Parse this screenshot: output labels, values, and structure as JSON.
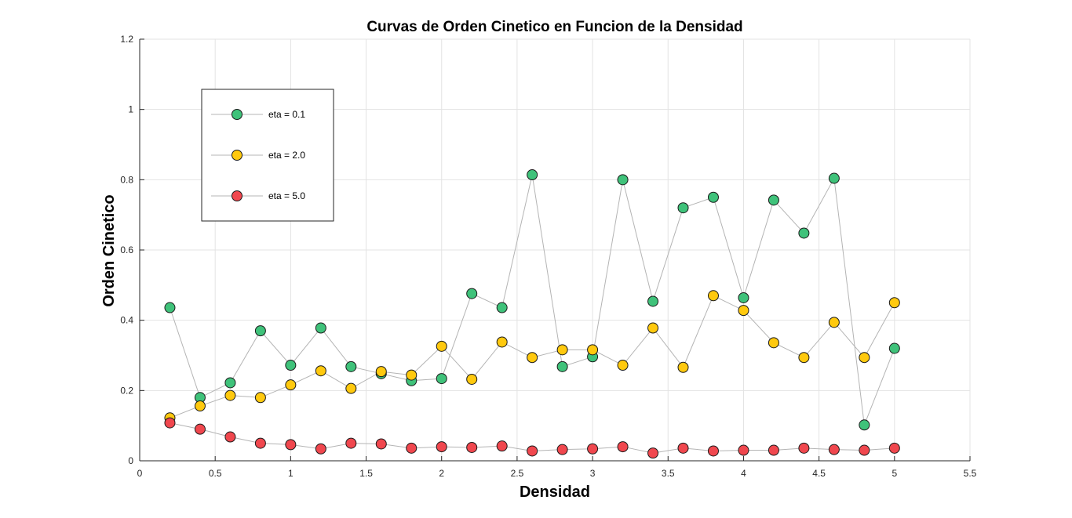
{
  "chart_data": {
    "type": "scatter",
    "title": "Curvas de Orden Cinetico en Funcion de la Densidad",
    "xlabel": "Densidad",
    "ylabel": "Orden Cinetico",
    "xlim": [
      0,
      5.5
    ],
    "ylim": [
      0,
      1.2
    ],
    "xticks": [
      "0",
      "0.5",
      "1",
      "1.5",
      "2",
      "2.5",
      "3",
      "3.5",
      "4",
      "4.5",
      "5",
      "5.5"
    ],
    "yticks": [
      "0",
      "0.2",
      "0.4",
      "0.6",
      "0.8",
      "1",
      "1.2"
    ],
    "grid": true,
    "legend_position": "top-left",
    "line_color": "#b4b4b4",
    "x": [
      0.2,
      0.4,
      0.6,
      0.8,
      1.0,
      1.2,
      1.4,
      1.6,
      1.8,
      2.0,
      2.2,
      2.4,
      2.6,
      2.8,
      3.0,
      3.2,
      3.4,
      3.6,
      3.8,
      4.0,
      4.2,
      4.4,
      4.6,
      4.8,
      5.0
    ],
    "series": [
      {
        "name": "eta = 0.1",
        "color": "#3fc27a",
        "values": [
          0.436,
          0.18,
          0.222,
          0.37,
          0.272,
          0.378,
          0.268,
          0.248,
          0.228,
          0.234,
          0.476,
          0.436,
          0.814,
          0.268,
          0.296,
          0.8,
          0.454,
          0.72,
          0.75,
          0.464,
          0.742,
          0.648,
          0.804,
          0.102,
          0.32
        ]
      },
      {
        "name": "eta = 2.0",
        "color": "#ffc90e",
        "values": [
          0.122,
          0.156,
          0.186,
          0.18,
          0.216,
          0.256,
          0.206,
          0.254,
          0.244,
          0.326,
          0.232,
          0.338,
          0.294,
          0.316,
          0.316,
          0.272,
          0.378,
          0.266,
          0.47,
          0.428,
          0.336,
          0.294,
          0.394,
          0.294,
          0.45
        ]
      },
      {
        "name": "eta = 5.0",
        "color": "#f0474e",
        "values": [
          0.108,
          0.09,
          0.068,
          0.05,
          0.046,
          0.034,
          0.05,
          0.048,
          0.036,
          0.04,
          0.038,
          0.042,
          0.028,
          0.032,
          0.034,
          0.04,
          0.022,
          0.036,
          0.028,
          0.03,
          0.03,
          0.036,
          0.032,
          0.03,
          0.036
        ]
      }
    ]
  }
}
